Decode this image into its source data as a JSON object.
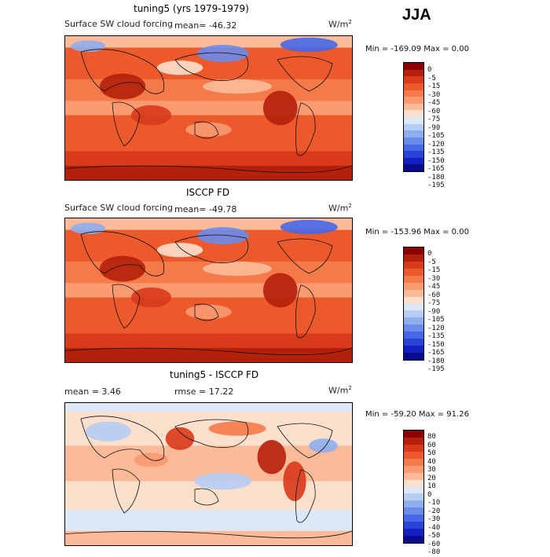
{
  "season": "JJA",
  "panels": [
    {
      "title": "tuning5 (yrs 1979-1979)",
      "field_label": "Surface SW cloud forcing",
      "stat_text": "mean=  -46.32",
      "units": "W/m",
      "units_exp": "2",
      "minmax": "Min = -169.09 Max =    0.00",
      "colorbar_labels": [
        "0",
        "-5",
        "-15",
        "-30",
        "-45",
        "-60",
        "-75",
        "-90",
        "-105",
        "-120",
        "-135",
        "-150",
        "-165",
        "-180",
        "-195"
      ],
      "colorbar_colors": [
        "#8b0000",
        "#b5200a",
        "#d83a1a",
        "#ec5a2c",
        "#f57a4a",
        "#fa9a70",
        "#fcbb98",
        "#fde0cc",
        "#dce8f8",
        "#b6cdf4",
        "#8eaeee",
        "#6a8ceb",
        "#4668e8",
        "#2a44d8",
        "#1420c0",
        "#0a0a8f"
      ],
      "blue_strength": 1.0
    },
    {
      "title": "ISCCP FD",
      "field_label": "Surface SW cloud forcing",
      "stat_text": "mean=  -49.78",
      "units": "W/m",
      "units_exp": "2",
      "minmax": "Min = -153.96 Max =    0.00",
      "colorbar_labels": [
        "0",
        "-5",
        "-15",
        "-30",
        "-45",
        "-60",
        "-75",
        "-90",
        "-105",
        "-120",
        "-135",
        "-150",
        "-165",
        "-180",
        "-195"
      ],
      "colorbar_colors": [
        "#8b0000",
        "#b5200a",
        "#d83a1a",
        "#ec5a2c",
        "#f57a4a",
        "#fa9a70",
        "#fcbb98",
        "#fde0cc",
        "#dce8f8",
        "#b6cdf4",
        "#8eaeee",
        "#6a8ceb",
        "#4668e8",
        "#2a44d8",
        "#1420c0",
        "#0a0a8f"
      ],
      "blue_strength": 0.7
    },
    {
      "title": "tuning5 - ISCCP FD",
      "mean_text": "mean =    3.46",
      "rmse_text": "rmse =   17.22",
      "units": "W/m",
      "units_exp": "2",
      "minmax": "Min = -59.20 Max =   91.26",
      "colorbar_labels": [
        "80",
        "60",
        "50",
        "40",
        "30",
        "20",
        "10",
        "0",
        "-10",
        "-20",
        "-30",
        "-40",
        "-50",
        "-60",
        "-80"
      ],
      "colorbar_colors": [
        "#8b0000",
        "#b5200a",
        "#d83a1a",
        "#ec5a2c",
        "#f57a4a",
        "#fa9a70",
        "#fcbb98",
        "#fde0cc",
        "#dce8f8",
        "#b6cdf4",
        "#8eaeee",
        "#6a8ceb",
        "#4668e8",
        "#2a44d8",
        "#1420c0",
        "#0a0a8f"
      ]
    }
  ]
}
